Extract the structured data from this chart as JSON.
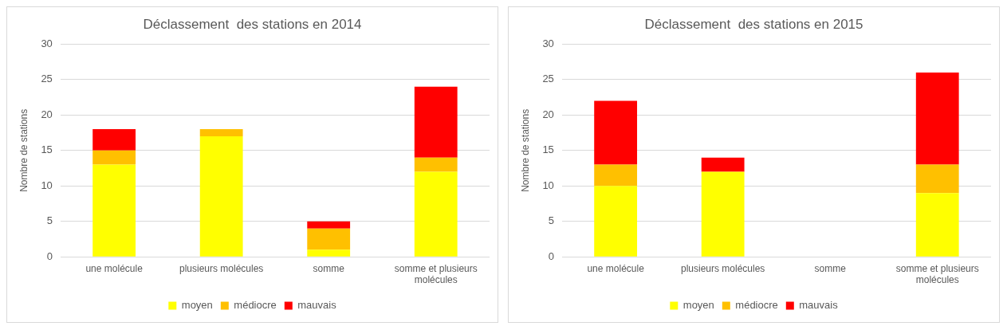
{
  "chart_data": [
    {
      "type": "bar",
      "title": "Déclassement  des stations en 2014",
      "ylabel": "Nombre de stations",
      "categories": [
        "une molécule",
        "plusieurs molécules",
        "somme",
        "somme et plusieurs molécules"
      ],
      "stacked": true,
      "ylim": [
        0,
        30
      ],
      "yticks": [
        0,
        5,
        10,
        15,
        20,
        25,
        30
      ],
      "grid": "y",
      "legend": "bottom",
      "series": [
        {
          "name": "moyen",
          "color": "#ffff00",
          "values": [
            13,
            17,
            1,
            12
          ]
        },
        {
          "name": "médiocre",
          "color": "#ffc000",
          "values": [
            2,
            1,
            3,
            2
          ]
        },
        {
          "name": "mauvais",
          "color": "#ff0000",
          "values": [
            3,
            0,
            1,
            10
          ]
        }
      ]
    },
    {
      "type": "bar",
      "title": "Déclassement  des stations en 2015",
      "ylabel": "Nombre de stations",
      "categories": [
        "une molécule",
        "plusieurs molécules",
        "somme",
        "somme et plusieurs molécules"
      ],
      "stacked": true,
      "ylim": [
        0,
        30
      ],
      "yticks": [
        0,
        5,
        10,
        15,
        20,
        25,
        30
      ],
      "grid": "y",
      "legend": "bottom",
      "series": [
        {
          "name": "moyen",
          "color": "#ffff00",
          "values": [
            10,
            12,
            0,
            9
          ]
        },
        {
          "name": "médiocre",
          "color": "#ffc000",
          "values": [
            3,
            0,
            0,
            4
          ]
        },
        {
          "name": "mauvais",
          "color": "#ff0000",
          "values": [
            9,
            2,
            0,
            13
          ]
        }
      ]
    }
  ]
}
